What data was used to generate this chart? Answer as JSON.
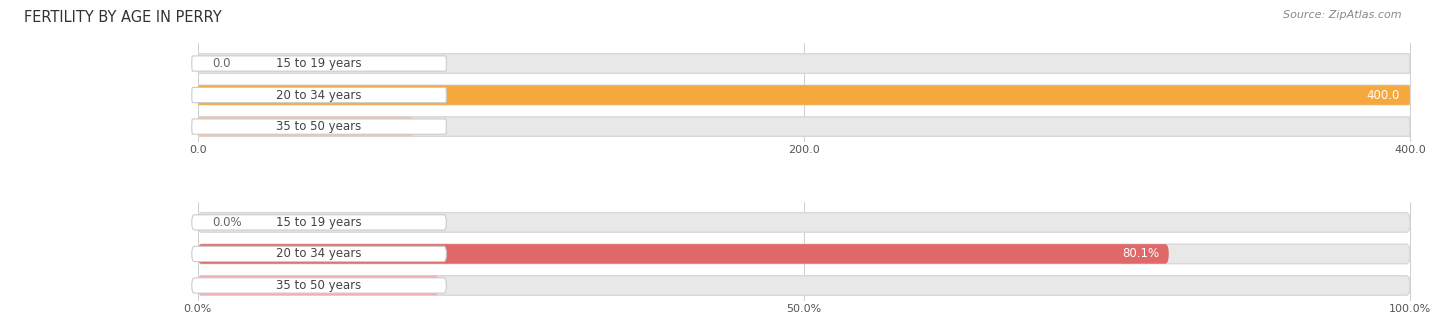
{
  "title": "FERTILITY BY AGE IN PERRY",
  "source": "Source: ZipAtlas.com",
  "top_chart": {
    "categories": [
      "15 to 19 years",
      "20 to 34 years",
      "35 to 50 years"
    ],
    "values": [
      0.0,
      400.0,
      71.0
    ],
    "max_value": 400.0,
    "x_ticks": [
      0.0,
      200.0,
      400.0
    ],
    "x_tick_labels": [
      "0.0",
      "200.0",
      "400.0"
    ],
    "bar_colors": [
      "#f5c5a0",
      "#f5a83c",
      "#f5c5a0"
    ],
    "bar_bg_color": "#e8e8e8",
    "label_inside_color": "#ffffff",
    "label_outside_color": "#666666"
  },
  "bottom_chart": {
    "categories": [
      "15 to 19 years",
      "20 to 34 years",
      "35 to 50 years"
    ],
    "values": [
      0.0,
      80.1,
      19.9
    ],
    "max_value": 100.0,
    "x_ticks": [
      0.0,
      50.0,
      100.0
    ],
    "x_tick_labels": [
      "0.0%",
      "50.0%",
      "100.0%"
    ],
    "bar_colors": [
      "#f0b0b0",
      "#e06868",
      "#f0b0b0"
    ],
    "bar_bg_color": "#e8e8e8",
    "label_inside_color": "#ffffff",
    "label_outside_color": "#666666"
  },
  "fig_bg": "#ffffff",
  "bar_height": 0.62,
  "label_fontsize": 8.5,
  "tick_fontsize": 8,
  "title_fontsize": 10.5,
  "source_fontsize": 8,
  "cat_fontsize": 8.5,
  "cat_label_bg": "#ffffff",
  "cat_label_color": "#444444"
}
